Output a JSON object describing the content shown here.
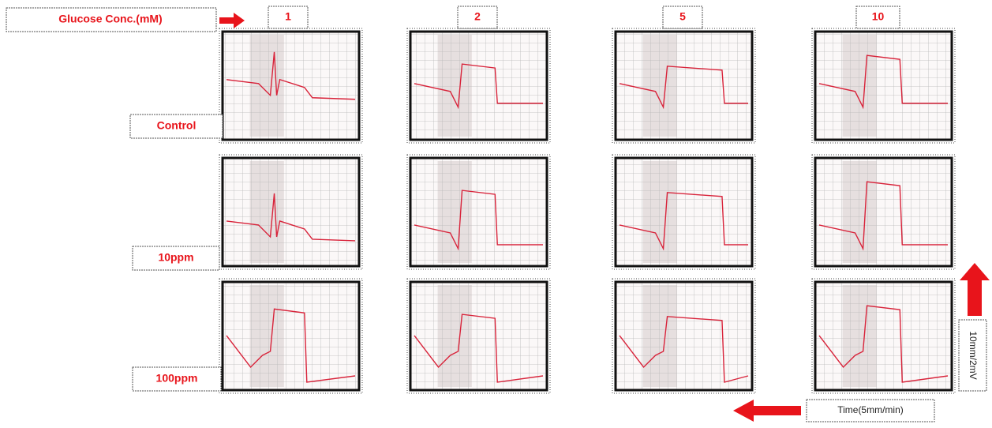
{
  "header": {
    "label": "Glucose Conc.(mM)"
  },
  "columns": [
    "1",
    "2",
    "5",
    "10"
  ],
  "rows": [
    "Control",
    "10ppm",
    "100ppm"
  ],
  "scale": {
    "vertical": "10mm/2mV",
    "time": "Time(5mm/min)"
  }
}
